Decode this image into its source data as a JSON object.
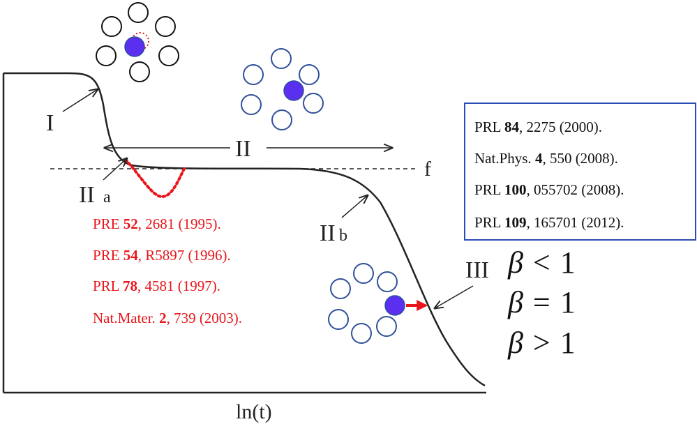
{
  "axis": {
    "x_label": "ln(t)"
  },
  "regions": {
    "I": "I",
    "II": "II",
    "IIa_main": "II",
    "IIa_sub": "a",
    "IIb_main": "II",
    "IIb_sub": "b",
    "III": "III",
    "plateau": "f"
  },
  "references_red": [
    {
      "journal": "PRE",
      "volume": "52",
      "rest": ", 2681 (1995)."
    },
    {
      "journal": "PRE",
      "volume": "54",
      "rest": ", R5897 (1996)."
    },
    {
      "journal": "PRL",
      "volume": "78",
      "rest": ", 4581 (1997)."
    },
    {
      "journal": "Nat.Mater.",
      "volume": "2",
      "rest": ", 739 (2003)."
    }
  ],
  "references_box": [
    {
      "journal": "PRL",
      "volume": "84",
      "rest": ", 2275 (2000)."
    },
    {
      "journal": "Nat.Phys.",
      "volume": "4",
      "rest": ", 550 (2008)."
    },
    {
      "journal": "PRL",
      "volume": "100",
      "rest": ", 055702 (2008)."
    },
    {
      "journal": "PRL",
      "volume": "109",
      "rest": ", 165701 (2012)."
    }
  ],
  "beta_conditions": [
    {
      "symbol": "β",
      "relation": "<",
      "value": "1"
    },
    {
      "symbol": "β",
      "relation": "=",
      "value": "1"
    },
    {
      "symbol": "β",
      "relation": ">",
      "value": "1"
    }
  ],
  "colors": {
    "particle": "#5b2ff0",
    "cage_black": "#111111",
    "cage_blue": "#2e4f9a",
    "red": "#e8161b",
    "box_border": "#2a4db5"
  }
}
